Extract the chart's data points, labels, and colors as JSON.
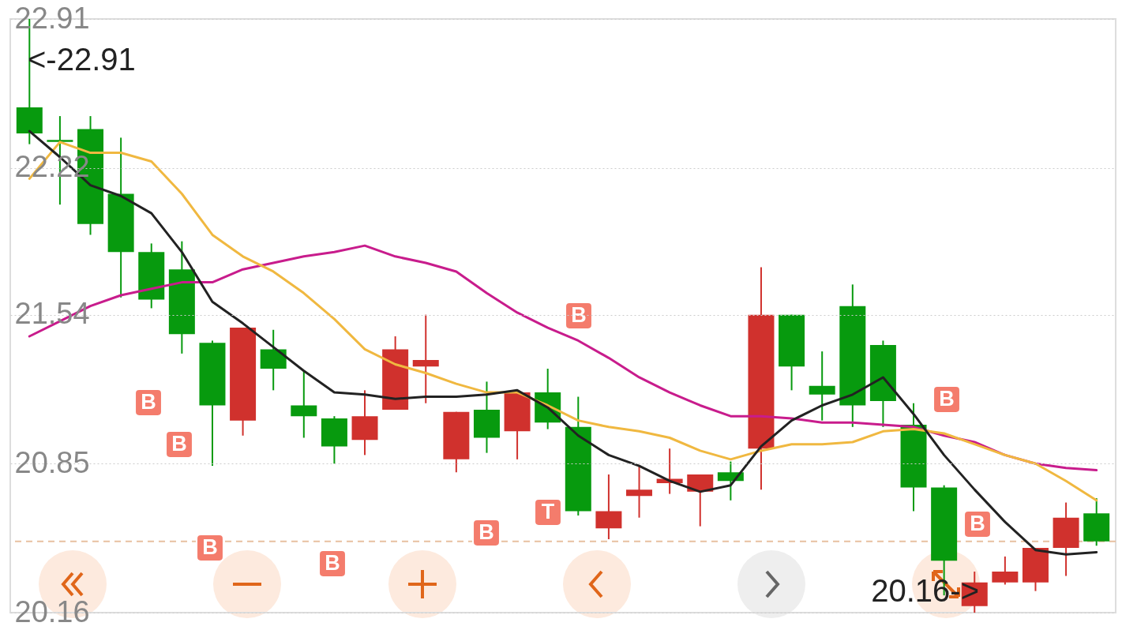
{
  "chart_data": {
    "type": "candlestick",
    "categories": [
      null,
      null,
      null,
      null,
      null,
      null,
      null,
      null,
      null,
      null,
      null,
      null,
      null,
      null,
      null,
      null,
      null,
      null,
      null,
      null,
      null,
      null,
      null,
      null,
      null,
      null,
      null,
      null,
      null,
      null,
      null,
      null,
      null,
      null,
      null,
      null
    ],
    "ohlc": [
      [
        22.5,
        22.91,
        22.33,
        22.38
      ],
      [
        22.35,
        22.46,
        22.05,
        22.34
      ],
      [
        22.4,
        22.46,
        21.91,
        21.96
      ],
      [
        22.1,
        22.36,
        21.62,
        21.83
      ],
      [
        21.83,
        21.87,
        21.57,
        21.61
      ],
      [
        21.75,
        21.88,
        21.36,
        21.45
      ],
      [
        21.41,
        21.42,
        20.84,
        21.12
      ],
      [
        21.05,
        21.48,
        20.98,
        21.48
      ],
      [
        21.38,
        21.47,
        21.19,
        21.29
      ],
      [
        21.12,
        21.28,
        20.97,
        21.07
      ],
      [
        21.06,
        21.07,
        20.85,
        20.93
      ],
      [
        20.96,
        21.19,
        20.89,
        21.07
      ],
      [
        21.1,
        21.44,
        21.1,
        21.38
      ],
      [
        21.3,
        21.54,
        21.13,
        21.33
      ],
      [
        20.87,
        21.09,
        20.81,
        21.09
      ],
      [
        21.1,
        21.23,
        20.9,
        20.97
      ],
      [
        21.0,
        21.18,
        20.87,
        21.18
      ],
      [
        21.18,
        21.29,
        21.01,
        21.04
      ],
      [
        21.02,
        21.16,
        20.61,
        20.63
      ],
      [
        20.55,
        20.8,
        20.5,
        20.63
      ],
      [
        20.7,
        20.84,
        20.6,
        20.73
      ],
      [
        20.76,
        20.92,
        20.71,
        20.78
      ],
      [
        20.72,
        20.8,
        20.56,
        20.8
      ],
      [
        20.81,
        20.86,
        20.68,
        20.77
      ],
      [
        20.92,
        21.76,
        20.73,
        21.54
      ],
      [
        21.54,
        21.54,
        21.19,
        21.3
      ],
      [
        21.21,
        21.37,
        21.05,
        21.17
      ],
      [
        21.58,
        21.68,
        21.02,
        21.12
      ],
      [
        21.4,
        21.42,
        21.02,
        21.14
      ],
      [
        21.03,
        21.13,
        20.63,
        20.74
      ],
      [
        20.74,
        20.75,
        20.24,
        20.4
      ],
      [
        20.19,
        20.35,
        20.16,
        20.3
      ],
      [
        20.3,
        20.42,
        20.29,
        20.35
      ],
      [
        20.3,
        20.46,
        20.26,
        20.46
      ],
      [
        20.46,
        20.67,
        20.33,
        20.6
      ],
      [
        20.62,
        20.69,
        20.47,
        20.49
      ]
    ],
    "series": [
      {
        "type": "line",
        "color": "#c81c8c",
        "values": [
          21.44,
          21.51,
          21.58,
          21.63,
          21.66,
          21.69,
          21.69,
          21.75,
          21.78,
          21.81,
          21.83,
          21.86,
          21.81,
          21.78,
          21.74,
          21.64,
          21.55,
          21.48,
          21.42,
          21.34,
          21.25,
          21.18,
          21.12,
          21.07,
          21.07,
          21.06,
          21.04,
          21.04,
          21.03,
          21.02,
          20.98,
          20.95,
          20.89,
          20.85,
          20.83,
          20.82
        ]
      },
      {
        "type": "line",
        "color": "#f0b840",
        "values": [
          22.17,
          22.34,
          22.29,
          22.29,
          22.25,
          22.1,
          21.91,
          21.81,
          21.74,
          21.64,
          21.52,
          21.38,
          21.31,
          21.27,
          21.22,
          21.18,
          21.18,
          21.12,
          21.05,
          21.02,
          21.0,
          20.97,
          20.91,
          20.87,
          20.91,
          20.94,
          20.94,
          20.95,
          21.0,
          21.01,
          20.99,
          20.94,
          20.89,
          20.85,
          20.77,
          20.68
        ]
      },
      {
        "type": "line",
        "color": "#222222",
        "values": [
          22.39,
          22.27,
          22.14,
          22.09,
          22.01,
          21.83,
          21.6,
          21.5,
          21.39,
          21.28,
          21.18,
          21.17,
          21.15,
          21.16,
          21.16,
          21.17,
          21.19,
          21.11,
          20.98,
          20.89,
          20.84,
          20.77,
          20.72,
          20.75,
          20.93,
          21.05,
          21.12,
          21.17,
          21.25,
          21.08,
          20.89,
          20.73,
          20.58,
          20.45,
          20.43,
          20.44
        ]
      }
    ],
    "ylim": [
      20.16,
      22.91
    ],
    "yticks": [
      20.16,
      20.85,
      21.54,
      22.22,
      22.91
    ],
    "tick_labels": "y",
    "grid": "y",
    "ref_lines": [
      {
        "axis": "y",
        "value": 20.49,
        "color": "#e8c0a0",
        "line_style": "dashed"
      }
    ],
    "annotations": [
      "<-22.91",
      "20.16->",
      "B",
      "B",
      "B",
      "B",
      "B",
      "T",
      "B",
      "B",
      "B"
    ]
  }
}
